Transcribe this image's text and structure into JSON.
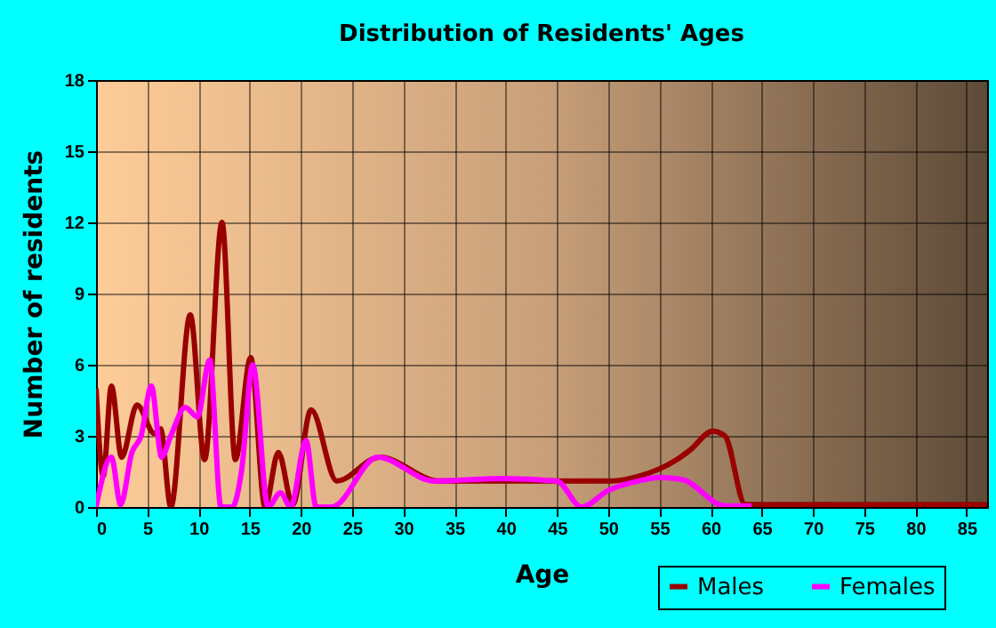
{
  "chart_data": {
    "type": "line",
    "title": "Distribution of Residents' Ages",
    "xlabel": "Age",
    "ylabel": "Number of residents",
    "xlim": [
      0,
      87
    ],
    "xticks": [
      0,
      5,
      10,
      15,
      20,
      25,
      30,
      35,
      40,
      45,
      50,
      55,
      60,
      65,
      70,
      75,
      80,
      85
    ],
    "ylim": [
      0,
      18
    ],
    "yticks": [
      0,
      3,
      6,
      9,
      12,
      15,
      18
    ],
    "grid": true,
    "legend": "bottom right",
    "marker": "none",
    "line_style": "solid",
    "series": [
      {
        "name": "Males",
        "color": "#990000",
        "x": [
          0,
          0.7,
          1.5,
          2.5,
          4,
          5.7,
          6.3,
          7.3,
          9.2,
          10.6,
          12.3,
          13.6,
          15.1,
          16.5,
          17.8,
          19.2,
          21,
          23.5,
          27.7,
          33.5,
          40,
          45,
          50.3,
          53,
          56.7,
          58,
          60.2,
          61.4,
          63.4,
          70,
          80,
          87
        ],
        "values": [
          5,
          1.3,
          5.1,
          2.1,
          4.3,
          3.1,
          3.3,
          0,
          8.1,
          2,
          12,
          2,
          6.3,
          0,
          2.3,
          0.1,
          4.1,
          1.1,
          2.1,
          1.1,
          1.1,
          1.1,
          1.1,
          1.3,
          2,
          2.4,
          3.2,
          3,
          0.1,
          0.1,
          0.1,
          0.1
        ]
      },
      {
        "name": "Females",
        "color": "#ff00ff",
        "x": [
          0,
          1.5,
          2.4,
          3.5,
          4.4,
          5.4,
          6.4,
          7.3,
          8.7,
          9.9,
          11.1,
          12.2,
          13.3,
          14.2,
          15.3,
          16.8,
          18,
          19,
          20.5,
          21.5,
          23,
          27.5,
          33,
          39.8,
          45,
          47.4,
          50,
          53,
          55,
          57.3,
          61.4,
          64
        ],
        "values": [
          0,
          2.1,
          0.1,
          2.3,
          3,
          5.1,
          2.1,
          3,
          4.2,
          3.8,
          6.2,
          0,
          0,
          1.5,
          6,
          0,
          0.6,
          0,
          2.8,
          0,
          0,
          2.1,
          1.1,
          1.2,
          1.1,
          0,
          0.7,
          1.1,
          1.25,
          1.15,
          0.05,
          0.05
        ]
      }
    ]
  }
}
